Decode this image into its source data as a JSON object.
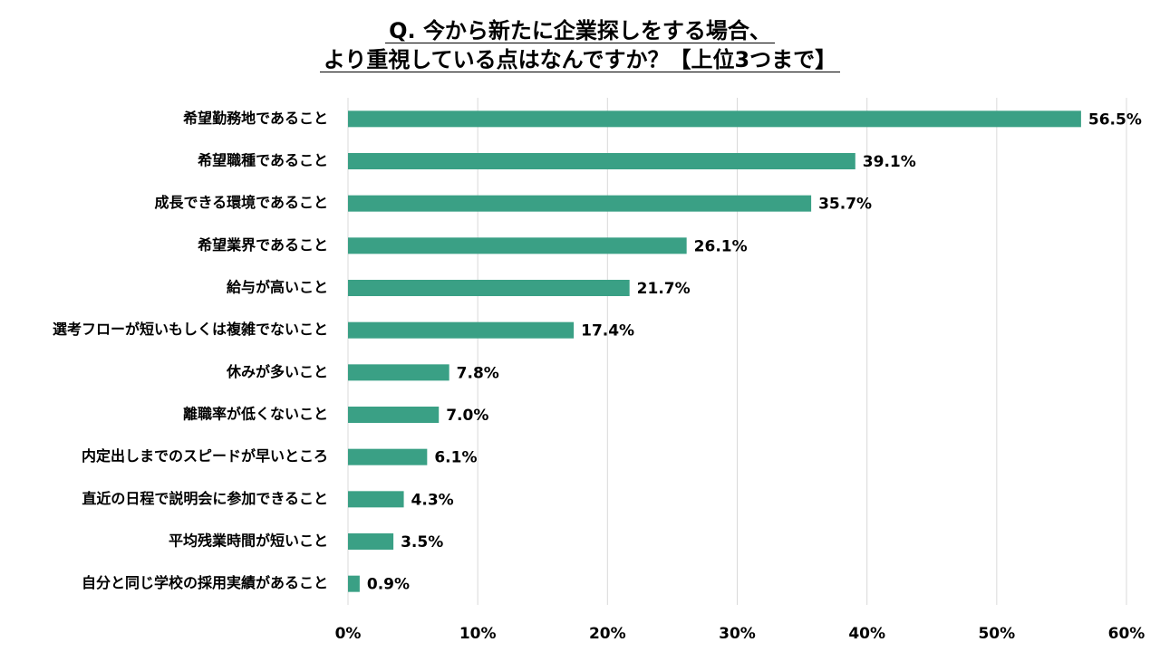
{
  "title": {
    "line1": "Q. 今から新たに企業探しをする場合、",
    "line2": "より重視している点はなんですか？【上位3つまで】"
  },
  "chart_data": {
    "type": "bar",
    "orientation": "horizontal",
    "categories": [
      "希望勤務地であること",
      "希望職種であること",
      "成長できる環境であること",
      "希望業界であること",
      "給与が高いこと",
      "選考フローが短いもしくは複雑でないこと",
      "休みが多いこと",
      "離職率が低くないこと",
      "内定出しまでのスピードが早いところ",
      "直近の日程で説明会に参加できること",
      "平均残業時間が短いこと",
      "自分と同じ学校の採用実績があること"
    ],
    "values": [
      56.5,
      39.1,
      35.7,
      26.1,
      21.7,
      17.4,
      7.8,
      7.0,
      6.1,
      4.3,
      3.5,
      0.9
    ],
    "value_labels": [
      "56.5%",
      "39.1%",
      "35.7%",
      "26.1%",
      "21.7%",
      "17.4%",
      "7.8%",
      "7.0%",
      "6.1%",
      "4.3%",
      "3.5%",
      "0.9%"
    ],
    "xlim": [
      0,
      60
    ],
    "ticks": [
      0,
      10,
      20,
      30,
      40,
      50,
      60
    ],
    "tick_labels": [
      "0%",
      "10%",
      "20%",
      "30%",
      "40%",
      "50%",
      "60%"
    ],
    "grid": true,
    "bar_color": "#3aa085",
    "grid_color": "#d9d9d9"
  }
}
